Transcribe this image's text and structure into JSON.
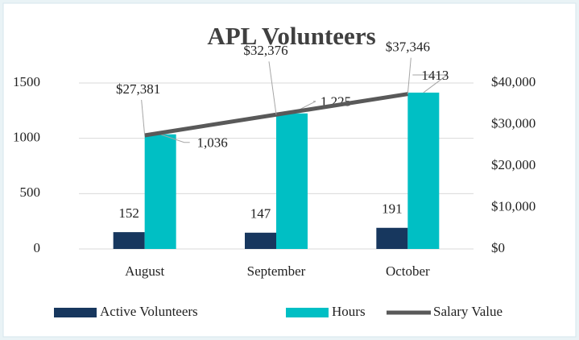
{
  "chart_data": {
    "type": "bar",
    "title": "APL Volunteers",
    "categories": [
      "August",
      "September",
      "October"
    ],
    "series": [
      {
        "name": "Active Volunteers",
        "type": "bar",
        "color": "#17375e",
        "values": [
          152,
          147,
          191
        ]
      },
      {
        "name": "Hours",
        "type": "bar",
        "color": "#00bfc4",
        "values": [
          1036,
          1225,
          1413
        ],
        "value_labels": [
          "1,036",
          "1,225",
          "1413"
        ]
      },
      {
        "name": "Salary Value",
        "type": "line",
        "axis": "y2",
        "color": "#595959",
        "values": [
          27381,
          32376,
          37346
        ],
        "value_labels": [
          "$27,381",
          "$32,376",
          "$37,346"
        ]
      }
    ],
    "ylim": [
      0,
      1500
    ],
    "yticks": [
      0,
      500,
      1000,
      1500
    ],
    "y2lim": [
      0,
      40000
    ],
    "y2ticks": [
      {
        "value": 0,
        "label": "$0"
      },
      {
        "value": 10000,
        "label": "$10,000"
      },
      {
        "value": 20000,
        "label": "$20,000"
      },
      {
        "value": 30000,
        "label": "$30,000"
      },
      {
        "value": 40000,
        "label": "$40,000"
      }
    ],
    "grid": true,
    "legend": "bottom"
  }
}
